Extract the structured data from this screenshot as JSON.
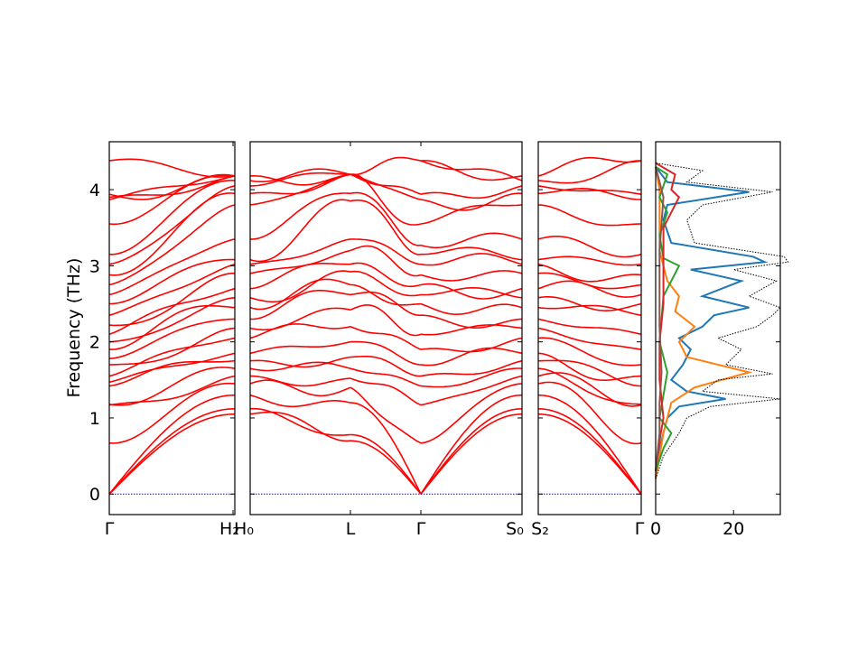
{
  "figure": {
    "ylabel": "Frequency (THz)",
    "colors": {
      "band": "#ff0000",
      "zero_line": "#0000ff",
      "frame": "#000000",
      "dos_total": "#000000"
    }
  },
  "chart_data": [
    {
      "type": "line",
      "title": "",
      "panel": "band-1",
      "path": [
        "Γ",
        "H_2",
        "H_0"
      ],
      "xtick_labels": [
        "Γ",
        "H₂",
        "H₀"
      ],
      "ylabel": "Frequency (THz)",
      "ylim": [
        -0.27,
        4.63
      ],
      "yticks": [
        0,
        1,
        2,
        3,
        4
      ],
      "grid": false,
      "series_color": "#ff0000",
      "branch_count": 48,
      "gamma_start_values": [
        0.0,
        0.0,
        0.0,
        0.67,
        1.17,
        1.18,
        1.42,
        1.47,
        1.55,
        1.7,
        1.78,
        1.9,
        2.0,
        2.1,
        2.22,
        2.35,
        2.5,
        2.62,
        2.75,
        2.88,
        3.02,
        3.15,
        3.55,
        3.87,
        3.9,
        3.94,
        4.38
      ],
      "edge_values": [
        1.05,
        1.12,
        1.3,
        1.45,
        1.55,
        1.65,
        1.75,
        1.85,
        2.05,
        2.18,
        2.3,
        2.45,
        2.58,
        2.7,
        2.9,
        3.02,
        3.08,
        3.35,
        3.8,
        3.95,
        4.05,
        4.12,
        4.18
      ]
    },
    {
      "type": "line",
      "title": "",
      "panel": "band-2",
      "path": [
        "H_0",
        "L",
        "Γ",
        "S_0"
      ],
      "xtick_labels": [
        "L",
        "Γ",
        "S₀"
      ],
      "ylim": [
        -0.27,
        4.63
      ],
      "series_color": "#ff0000",
      "gamma_values": [
        0.0,
        0.0,
        0.0,
        0.67,
        1.17,
        1.42,
        1.55,
        1.7,
        1.9,
        2.1,
        2.35,
        2.5,
        2.62,
        2.75,
        2.88,
        3.02,
        3.15,
        3.27,
        3.55,
        3.87,
        3.94,
        4.38
      ],
      "L_values": [
        0.7,
        0.78,
        1.2,
        1.4,
        1.52,
        1.65,
        1.8,
        2.0,
        2.2,
        2.42,
        2.62,
        2.75,
        2.92,
        3.02,
        3.2,
        3.35,
        3.85,
        3.95,
        4.2
      ]
    },
    {
      "type": "line",
      "title": "",
      "panel": "band-3",
      "path": [
        "S_2",
        "Γ"
      ],
      "xtick_labels": [
        "S₂",
        "Γ"
      ],
      "ylim": [
        -0.27,
        4.63
      ],
      "series_color": "#ff0000",
      "gamma_values": [
        0.0,
        0.0,
        0.0,
        0.67,
        1.17,
        1.18,
        1.42,
        1.55,
        1.7,
        1.9,
        2.1,
        2.35,
        2.5,
        2.62,
        2.75,
        2.88,
        3.02,
        3.15,
        3.55,
        3.87,
        3.94,
        4.38
      ]
    },
    {
      "type": "line",
      "title": "",
      "panel": "dos",
      "xlim": [
        0,
        32
      ],
      "xticks": [
        0,
        20
      ],
      "ylim": [
        -0.27,
        4.63
      ],
      "series": [
        {
          "color": "#1f77b4",
          "y": [
            0.2,
            0.5,
            0.8,
            1.0,
            1.15,
            1.25,
            1.35,
            1.5,
            1.7,
            1.9,
            2.05,
            2.2,
            2.35,
            2.45,
            2.6,
            2.8,
            2.95,
            3.05,
            3.12,
            3.3,
            3.6,
            3.8,
            3.97,
            4.1,
            4.3
          ],
          "x": [
            0,
            0.5,
            2,
            3,
            6,
            18,
            8,
            4,
            7,
            9,
            6,
            12,
            15,
            24,
            12,
            22,
            9,
            28,
            25,
            4,
            2,
            3,
            24,
            3,
            0
          ]
        },
        {
          "color": "#ff7f0e",
          "y": [
            0.2,
            0.5,
            0.8,
            1.0,
            1.2,
            1.4,
            1.6,
            1.8,
            2.0,
            2.2,
            2.4,
            2.6,
            2.8,
            3.0,
            3.2,
            3.6,
            4.0,
            4.3
          ],
          "x": [
            0,
            1,
            2,
            3,
            4,
            10,
            24,
            8,
            6,
            10,
            5,
            6,
            3,
            2,
            1,
            1,
            1,
            0
          ]
        },
        {
          "color": "#2ca02c",
          "y": [
            0.3,
            0.6,
            0.8,
            1.0,
            1.6,
            2.0,
            2.6,
            3.0,
            3.1,
            3.4,
            3.7,
            3.9,
            4.2,
            4.3
          ],
          "x": [
            0,
            2,
            4,
            1,
            3,
            1,
            2,
            6,
            2,
            1,
            3,
            1,
            3,
            0
          ]
        },
        {
          "color": "#d62728",
          "y": [
            0.3,
            0.7,
            1.0,
            1.5,
            2.0,
            2.5,
            3.0,
            3.5,
            3.9,
            4.0,
            4.2,
            4.35
          ],
          "x": [
            0,
            1,
            2,
            1,
            1,
            2,
            2,
            2,
            6,
            4,
            5,
            0
          ]
        },
        {
          "color": "#8c564b",
          "y": [
            0.3,
            0.8,
            1.2,
            1.6,
            2.2,
            2.8,
            3.2,
            3.9,
            4.3
          ],
          "x": [
            0,
            1,
            1,
            1.5,
            1,
            1,
            1,
            2,
            0
          ]
        },
        {
          "color": "#000000",
          "dashed": true,
          "y": [
            0.2,
            0.5,
            0.8,
            1.0,
            1.15,
            1.25,
            1.35,
            1.5,
            1.58,
            1.7,
            1.9,
            2.05,
            2.2,
            2.35,
            2.45,
            2.6,
            2.8,
            2.95,
            3.05,
            3.12,
            3.3,
            3.6,
            3.8,
            3.97,
            4.1,
            4.25,
            4.35
          ],
          "x": [
            0,
            2,
            6,
            8,
            14,
            32,
            12,
            16,
            30,
            18,
            22,
            16,
            26,
            30,
            32,
            24,
            31,
            20,
            34,
            33,
            10,
            8,
            12,
            30,
            8,
            12,
            0
          ]
        }
      ]
    }
  ]
}
